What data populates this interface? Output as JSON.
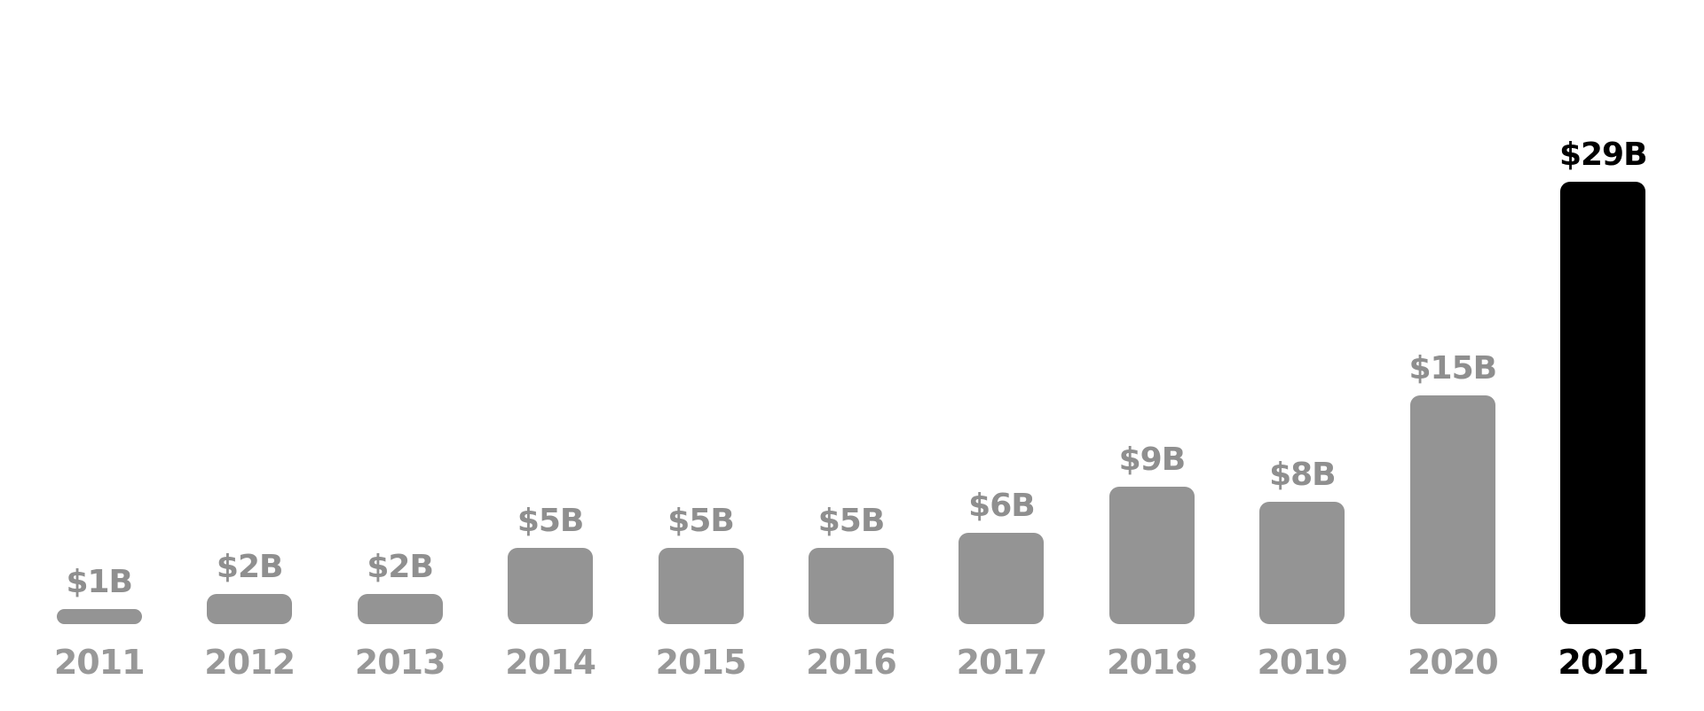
{
  "chart_data": {
    "type": "bar",
    "categories": [
      "2011",
      "2012",
      "2013",
      "2014",
      "2015",
      "2016",
      "2017",
      "2018",
      "2019",
      "2020",
      "2021"
    ],
    "values": [
      1,
      2,
      2,
      5,
      5,
      5,
      6,
      9,
      8,
      15,
      29
    ],
    "value_labels": [
      "$1B",
      "$2B",
      "$2B",
      "$5B",
      "$5B",
      "$5B",
      "$6B",
      "$9B",
      "$8B",
      "$15B",
      "$29B"
    ],
    "highlighted_category": "2021",
    "highlight_index": 10,
    "xlabel": "",
    "ylabel": "",
    "ylim": [
      0,
      29
    ],
    "grid": false,
    "axes_shown": false,
    "legend_position": "none",
    "colors": {
      "bar_default": "#949494",
      "bar_highlight": "#000000",
      "label_default": "#8f8f8f",
      "year_label_default": "#989898",
      "label_highlight": "#000000",
      "background": "#ffffff"
    }
  }
}
